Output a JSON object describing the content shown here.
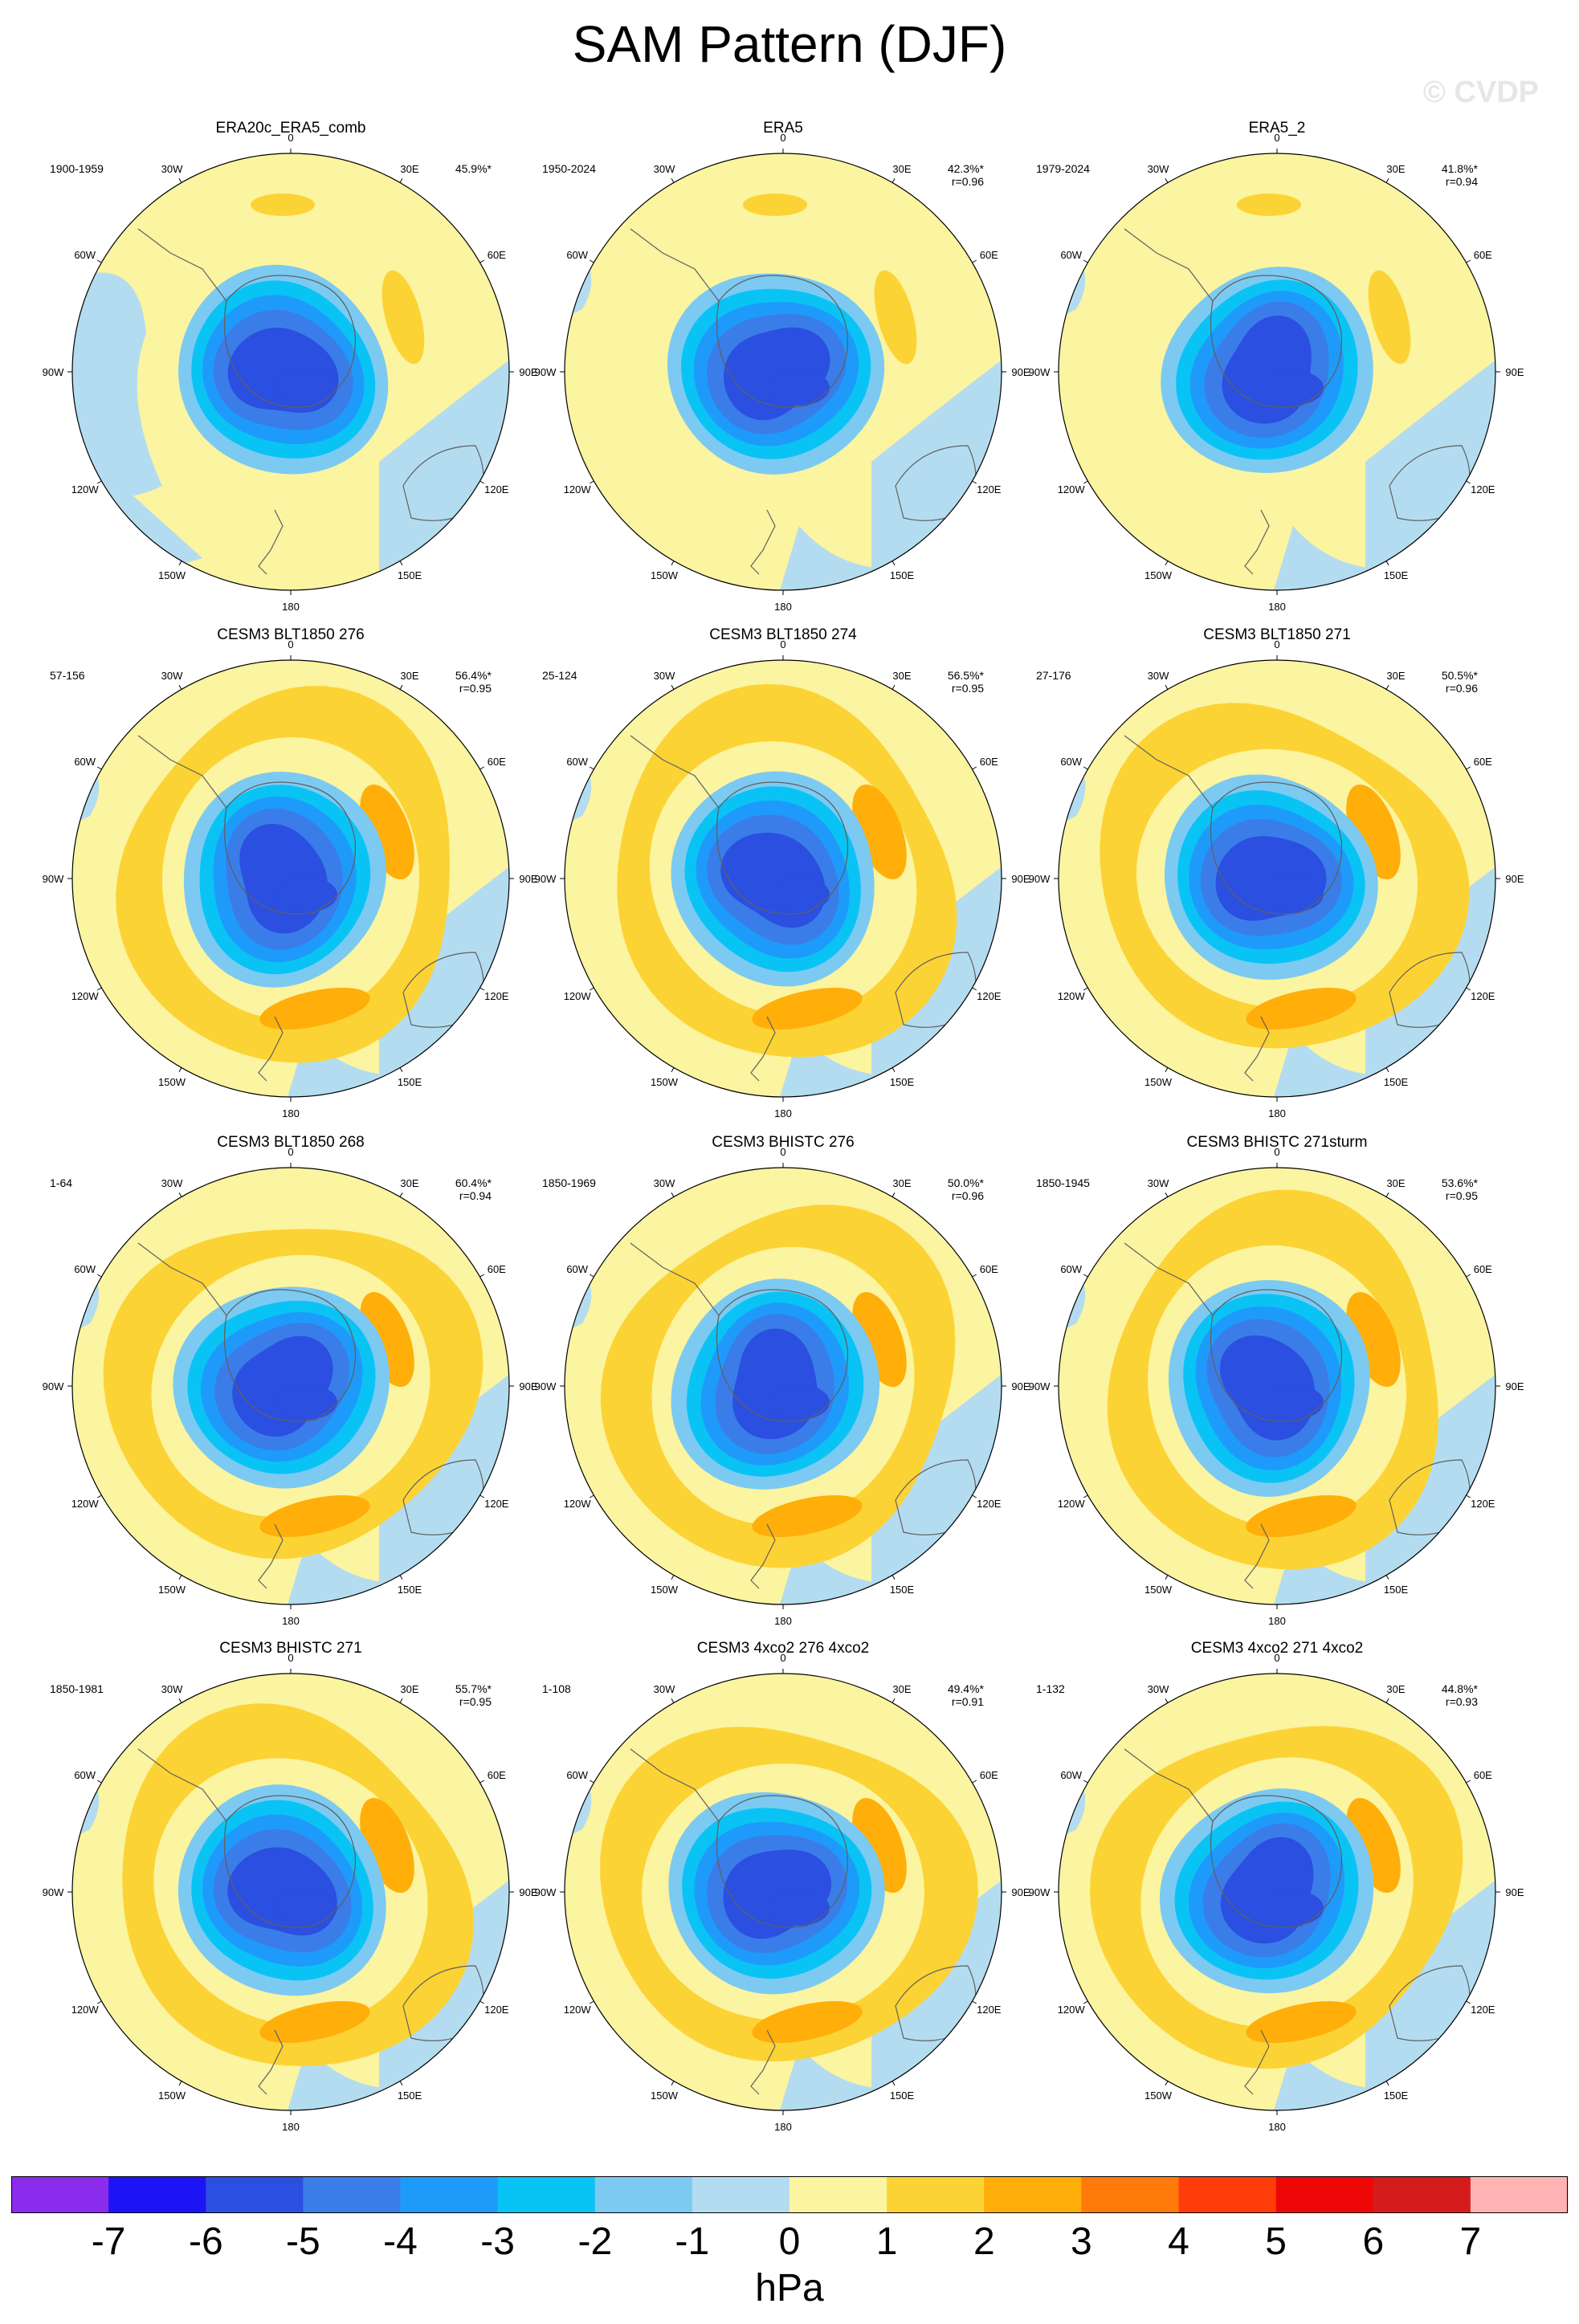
{
  "title": "SAM Pattern (DJF)",
  "watermark": "© CVDP",
  "lon_labels": [
    "0",
    "30E",
    "60E",
    "90E",
    "120E",
    "150E",
    "180",
    "150W",
    "120W",
    "90W",
    "60W",
    "30W"
  ],
  "panels": [
    {
      "name": "ERA20c_ERA5_comb",
      "years": "1900-1959",
      "pct": "45.9%*",
      "r": ""
    },
    {
      "name": "ERA5",
      "years": "1950-2024",
      "pct": "42.3%*",
      "r": "r=0.96"
    },
    {
      "name": "ERA5_2",
      "years": "1979-2024",
      "pct": "41.8%*",
      "r": "r=0.94"
    },
    {
      "name": "CESM3 BLT1850 276",
      "years": "57-156",
      "pct": "56.4%*",
      "r": "r=0.95"
    },
    {
      "name": "CESM3 BLT1850 274",
      "years": "25-124",
      "pct": "56.5%*",
      "r": "r=0.95"
    },
    {
      "name": "CESM3 BLT1850 271",
      "years": "27-176",
      "pct": "50.5%*",
      "r": "r=0.96"
    },
    {
      "name": "CESM3 BLT1850 268",
      "years": "1-64",
      "pct": "60.4%*",
      "r": "r=0.94"
    },
    {
      "name": "CESM3 BHISTC 276",
      "years": "1850-1969",
      "pct": "50.0%*",
      "r": "r=0.96"
    },
    {
      "name": "CESM3 BHISTC 271sturm",
      "years": "1850-1945",
      "pct": "53.6%*",
      "r": "r=0.95"
    },
    {
      "name": "CESM3 BHISTC 271",
      "years": "1850-1981",
      "pct": "55.7%*",
      "r": "r=0.95"
    },
    {
      "name": "CESM3 4xco2 276 4xco2",
      "years": "1-108",
      "pct": "49.4%*",
      "r": "r=0.91"
    },
    {
      "name": "CESM3 4xco2 271 4xco2",
      "years": "1-132",
      "pct": "44.8%*",
      "r": "r=0.93"
    }
  ],
  "colorbar": {
    "labels": [
      "-7",
      "-6",
      "-5",
      "-4",
      "-3",
      "-2",
      "-1",
      "0",
      "1",
      "2",
      "3",
      "4",
      "5",
      "6",
      "7"
    ],
    "units": "hPa",
    "colors": [
      "#8b2ced",
      "#1d14f5",
      "#2b4fe0",
      "#3a7de8",
      "#1e9bfa",
      "#0ac3f5",
      "#7ccaf2",
      "#b4dcf0",
      "#fbf4a0",
      "#fcd334",
      "#ffae0a",
      "#ff7a0a",
      "#ff3d0a",
      "#ef0707",
      "#d51c1c",
      "#ffb3b3"
    ]
  }
}
